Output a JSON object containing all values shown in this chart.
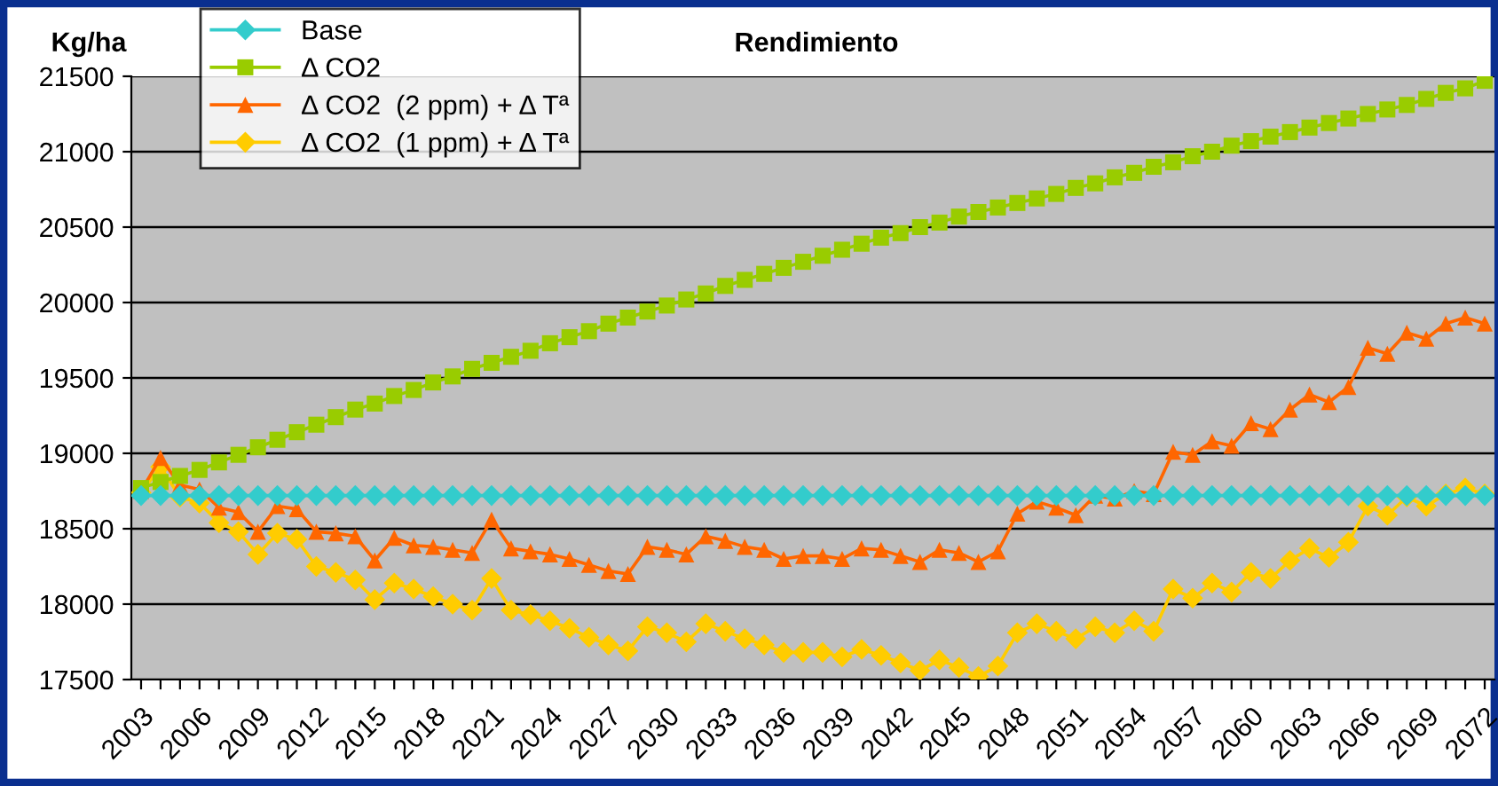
{
  "chart_data": {
    "type": "line",
    "title": "Rendimiento",
    "ylabel": "Kg/ha",
    "categories": [
      "2003",
      null,
      null,
      "2006",
      null,
      null,
      "2009",
      null,
      null,
      "2012",
      null,
      null,
      "2015",
      null,
      null,
      "2018",
      null,
      null,
      "2021",
      null,
      null,
      "2024",
      null,
      null,
      "2027",
      null,
      null,
      "2030",
      null,
      null,
      "2033",
      null,
      null,
      "2036",
      null,
      null,
      "2039",
      null,
      null,
      "2042",
      null,
      null,
      "2045",
      null,
      null,
      "2048",
      null,
      null,
      "2051",
      null,
      null,
      "2054",
      null,
      null,
      "2057",
      null,
      null,
      "2060",
      null,
      null,
      "2063",
      null,
      null,
      "2066",
      null,
      null,
      "2069",
      null,
      null,
      "2072"
    ],
    "series": [
      {
        "name": "Base",
        "color": "#33cccc",
        "marker": "diamond",
        "values": [
          18720,
          18720,
          18720,
          18720,
          18720,
          18720,
          18720,
          18720,
          18720,
          18720,
          18720,
          18720,
          18720,
          18720,
          18720,
          18720,
          18720,
          18720,
          18720,
          18720,
          18720,
          18720,
          18720,
          18720,
          18720,
          18720,
          18720,
          18720,
          18720,
          18720,
          18720,
          18720,
          18720,
          18720,
          18720,
          18720,
          18720,
          18720,
          18720,
          18720,
          18720,
          18720,
          18720,
          18720,
          18720,
          18720,
          18720,
          18720,
          18720,
          18720,
          18720,
          18720,
          18720,
          18720,
          18720,
          18720,
          18720,
          18720,
          18720,
          18720,
          18720,
          18720,
          18720,
          18720,
          18720,
          18720,
          18720,
          18720,
          18720,
          18720
        ]
      },
      {
        "name": "Δ CO2",
        "color": "#99cc00",
        "marker": "square",
        "values": [
          18770,
          18810,
          18850,
          18890,
          18940,
          18990,
          19040,
          19090,
          19140,
          19190,
          19240,
          19290,
          19330,
          19380,
          19420,
          19470,
          19510,
          19560,
          19600,
          19640,
          19680,
          19730,
          19770,
          19810,
          19860,
          19900,
          19940,
          19980,
          20020,
          20060,
          20110,
          20150,
          20190,
          20230,
          20270,
          20310,
          20350,
          20390,
          20430,
          20460,
          20500,
          20530,
          20570,
          20600,
          20630,
          20660,
          20690,
          20720,
          20760,
          20790,
          20830,
          20860,
          20900,
          20930,
          20970,
          21000,
          21040,
          21070,
          21100,
          21130,
          21160,
          21190,
          21220,
          21250,
          21280,
          21310,
          21350,
          21390,
          21420,
          21470
        ]
      },
      {
        "name": "Δ CO2  (2 ppm) + Δ Tª",
        "color": "#ff6600",
        "marker": "triangle",
        "values": [
          18750,
          18970,
          18790,
          18760,
          18640,
          18610,
          18480,
          18650,
          18630,
          18480,
          18470,
          18450,
          18290,
          18440,
          18390,
          18380,
          18360,
          18340,
          18560,
          18370,
          18350,
          18330,
          18300,
          18260,
          18220,
          18200,
          18380,
          18360,
          18330,
          18450,
          18420,
          18380,
          18360,
          18300,
          18320,
          18320,
          18300,
          18370,
          18360,
          18320,
          18280,
          18360,
          18340,
          18280,
          18350,
          18600,
          18680,
          18640,
          18590,
          18720,
          18700,
          18750,
          18730,
          19010,
          18990,
          19080,
          19050,
          19200,
          19160,
          19290,
          19390,
          19340,
          19440,
          19700,
          19660,
          19800,
          19760,
          19860,
          19900,
          19860
        ]
      },
      {
        "name": "Δ CO2  (1 ppm) + Δ Tª",
        "color": "#ffcc00",
        "marker": "diamond",
        "values": [
          18740,
          18910,
          18710,
          18670,
          18540,
          18480,
          18330,
          18470,
          18430,
          18250,
          18210,
          18160,
          18030,
          18140,
          18100,
          18050,
          18000,
          17960,
          18170,
          17960,
          17930,
          17890,
          17840,
          17780,
          17730,
          17690,
          17850,
          17810,
          17750,
          17870,
          17820,
          17770,
          17730,
          17680,
          17680,
          17680,
          17650,
          17700,
          17660,
          17610,
          17560,
          17630,
          17580,
          17520,
          17590,
          17810,
          17870,
          17820,
          17770,
          17850,
          17810,
          17890,
          17820,
          18100,
          18040,
          18140,
          18080,
          18210,
          18170,
          18290,
          18370,
          18310,
          18410,
          18650,
          18590,
          18710,
          18650,
          18730,
          18770,
          18730
        ]
      }
    ],
    "ylim": [
      17500,
      21500
    ],
    "yticks": [
      17500,
      18000,
      18500,
      19000,
      19500,
      20000,
      20500,
      21000,
      21500
    ],
    "grid": "y",
    "legend": "top left",
    "line_style": "solid"
  }
}
